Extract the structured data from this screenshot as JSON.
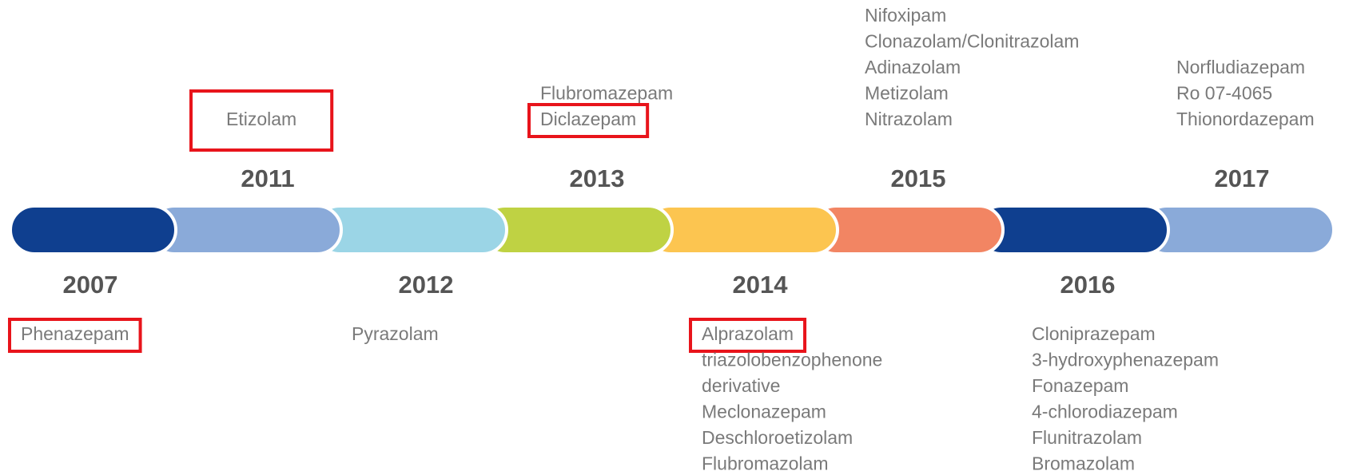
{
  "timeline": {
    "periods": [
      {
        "year": "2007",
        "color": "#0f3f8f",
        "position": "below",
        "drugs": [
          "Phenazepam"
        ],
        "highlighted": 0
      },
      {
        "year": "2011",
        "color": "#8aaad9",
        "position": "above",
        "drugs": [
          "Etizolam"
        ],
        "highlighted": 0
      },
      {
        "year": "2012",
        "color": "#9bd5e6",
        "position": "below",
        "drugs": [
          "Pyrazolam"
        ]
      },
      {
        "year": "2013",
        "color": "#bfd243",
        "position": "above",
        "drugs": [
          "Flubromazepam",
          "Diclazepam"
        ],
        "highlighted": 1
      },
      {
        "year": "2014",
        "color": "#fcc550",
        "position": "below",
        "drugs": [
          "Alprazolam",
          "triazolobenzophenone",
          "derivative",
          "Meclonazepam",
          "Deschloroetizolam",
          "Flubromazolam"
        ],
        "highlighted": 0
      },
      {
        "year": "2015",
        "color": "#f28563",
        "position": "above",
        "drugs": [
          "Nifoxipam",
          "Clonazolam/Clonitrazolam",
          "Adinazolam",
          "Metizolam",
          "Nitrazolam"
        ]
      },
      {
        "year": "2016",
        "color": "#0f3f8f",
        "position": "below",
        "drugs": [
          "Cloniprazepam",
          "3-hydroxyphenazepam",
          "Fonazepam",
          "4-chlorodiazepam",
          "Flunitrazolam",
          "Bromazolam"
        ]
      },
      {
        "year": "2017",
        "color": "#8aaad9",
        "position": "above",
        "drugs": [
          "Norfludiazepam",
          "Ro 07-4065",
          "Thionordazepam"
        ]
      }
    ]
  }
}
